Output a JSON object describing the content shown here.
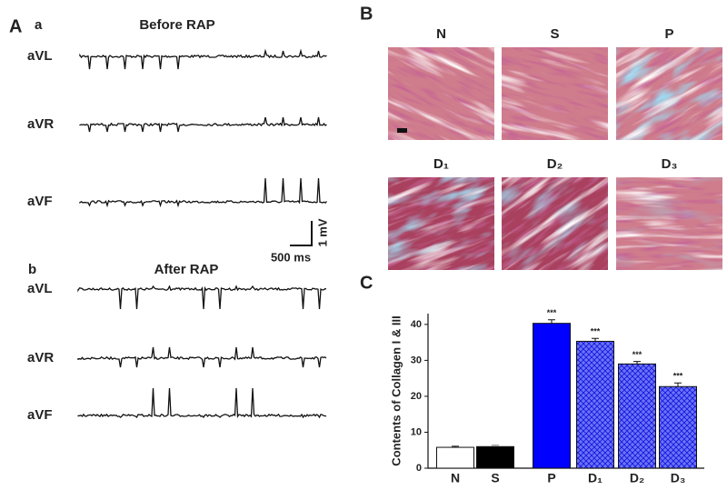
{
  "panel_a": {
    "label": "A",
    "sub_a": {
      "label": "a",
      "title": "Before RAP",
      "leads": [
        "aVL",
        "aVR",
        "aVF"
      ],
      "time_scale": "500 ms",
      "voltage_scale": "1 mV"
    },
    "sub_b": {
      "label": "b",
      "title": "After RAP",
      "leads": [
        "aVL",
        "aVR",
        "aVF"
      ]
    }
  },
  "panel_b": {
    "label": "B",
    "images": [
      "N",
      "S",
      "P",
      "D₁",
      "D₂",
      "D₃"
    ]
  },
  "chart_data": {
    "type": "bar",
    "panel_label": "C",
    "y_label": "Contents of Collagen I & III",
    "categories": [
      "N",
      "S",
      "P",
      "D₁",
      "D₂",
      "D₃"
    ],
    "values": [
      5.8,
      6.0,
      40.3,
      35.3,
      29.0,
      22.7
    ],
    "errors": [
      0.3,
      0.4,
      1.0,
      0.8,
      0.7,
      1.0
    ],
    "colors": [
      "#ffffff",
      "#000000",
      "#0000ff",
      "#0000ff",
      "#0000ff",
      "#0000ff"
    ],
    "hatch": [
      false,
      false,
      false,
      true,
      true,
      true
    ],
    "significance": [
      null,
      null,
      "***",
      "***",
      "***",
      "***"
    ],
    "ylim": [
      0,
      43
    ],
    "yticks": [
      0,
      10,
      20,
      30,
      40
    ]
  }
}
